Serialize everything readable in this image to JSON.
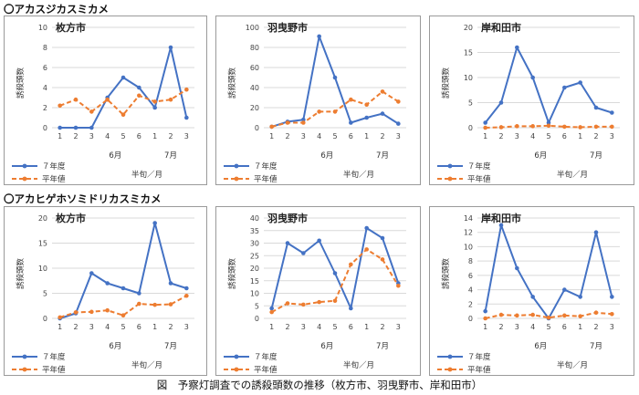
{
  "section1_title": "〇アカスジカスミカメ",
  "section2_title": "〇アカヒゲホソミドリカスミカメ",
  "caption": "図　予察灯調査での誘殺頭数の推移（枚方市、羽曳野市、岸和田市）",
  "colors": {
    "series1": "#4472C4",
    "series2": "#ED7D31",
    "grid": "#d9d9d9"
  },
  "chart_data": [
    {
      "type": "line",
      "title": "枚方市",
      "ylabel": "誘殺頭数",
      "xlabel": "半旬／月",
      "categories": [
        "1",
        "2",
        "3",
        "4",
        "5",
        "6",
        "1",
        "2",
        "3"
      ],
      "months": [
        "6月",
        "7月"
      ],
      "ylim": [
        0,
        10
      ],
      "yticks": [
        "0",
        "2",
        "4",
        "6",
        "8",
        "10"
      ],
      "series": [
        {
          "name": "７年度",
          "values": [
            0,
            0,
            0,
            3,
            5,
            4,
            2,
            8,
            1
          ]
        },
        {
          "name": "平年値",
          "values": [
            2.2,
            2.8,
            1.6,
            2.8,
            1.3,
            3.2,
            2.6,
            2.8,
            3.8
          ]
        }
      ]
    },
    {
      "type": "line",
      "title": "羽曳野市",
      "ylabel": "誘殺頭数",
      "xlabel": "半旬／月",
      "categories": [
        "1",
        "2",
        "3",
        "4",
        "5",
        "6",
        "1",
        "2",
        "3"
      ],
      "months": [
        "6月",
        "7月"
      ],
      "ylim": [
        0,
        100
      ],
      "yticks": [
        "0",
        "20",
        "40",
        "60",
        "80",
        "100"
      ],
      "series": [
        {
          "name": "７年度",
          "values": [
            1,
            6,
            8,
            91,
            50,
            5,
            10,
            14,
            4
          ]
        },
        {
          "name": "平年値",
          "values": [
            1,
            5,
            5,
            16,
            16,
            28,
            23,
            36,
            26
          ]
        }
      ]
    },
    {
      "type": "line",
      "title": "岸和田市",
      "ylabel": "誘殺頭数",
      "xlabel": "半旬／月",
      "categories": [
        "1",
        "2",
        "3",
        "4",
        "5",
        "6",
        "1",
        "2",
        "3"
      ],
      "months": [
        "6月",
        "7月"
      ],
      "ylim": [
        0,
        20
      ],
      "yticks": [
        "0",
        "5",
        "10",
        "15",
        "20"
      ],
      "series": [
        {
          "name": "７年度",
          "values": [
            1,
            5,
            16,
            10,
            1,
            8,
            9,
            4,
            3
          ]
        },
        {
          "name": "平年値",
          "values": [
            0,
            0.1,
            0.3,
            0.3,
            0.4,
            0.2,
            0.1,
            0.2,
            0.2
          ]
        }
      ]
    },
    {
      "type": "line",
      "title": "枚方市",
      "ylabel": "誘殺頭数",
      "xlabel": "半旬／月",
      "categories": [
        "1",
        "2",
        "3",
        "4",
        "5",
        "6",
        "1",
        "2",
        "3"
      ],
      "months": [
        "6月",
        "7月"
      ],
      "ylim": [
        0,
        20
      ],
      "yticks": [
        "0",
        "5",
        "10",
        "15",
        "20"
      ],
      "series": [
        {
          "name": "７年度",
          "values": [
            0,
            1,
            9,
            7,
            6,
            5,
            19,
            7,
            6
          ]
        },
        {
          "name": "平年値",
          "values": [
            0.2,
            1.2,
            1.3,
            1.6,
            0.6,
            2.9,
            2.7,
            2.8,
            4.5
          ]
        }
      ]
    },
    {
      "type": "line",
      "title": "羽曳野市",
      "ylabel": "誘殺頭数",
      "xlabel": "半旬／月",
      "categories": [
        "1",
        "2",
        "3",
        "4",
        "5",
        "6",
        "1",
        "2",
        "3"
      ],
      "months": [
        "6月",
        "7月"
      ],
      "ylim": [
        0,
        40
      ],
      "yticks": [
        "0",
        "5",
        "10",
        "15",
        "20",
        "25",
        "30",
        "35",
        "40"
      ],
      "series": [
        {
          "name": "７年度",
          "values": [
            4,
            30,
            26,
            31,
            18,
            4,
            36,
            32,
            14
          ]
        },
        {
          "name": "平年値",
          "values": [
            2.5,
            6,
            5.5,
            6.5,
            7,
            21.5,
            27.5,
            23.5,
            13
          ]
        }
      ]
    },
    {
      "type": "line",
      "title": "岸和田市",
      "ylabel": "誘殺頭数",
      "xlabel": "半旬／月",
      "categories": [
        "1",
        "2",
        "3",
        "4",
        "5",
        "6",
        "1",
        "2",
        "3"
      ],
      "months": [
        "6月",
        "7月"
      ],
      "ylim": [
        0,
        14
      ],
      "yticks": [
        "0",
        "2",
        "4",
        "6",
        "8",
        "10",
        "12",
        "14"
      ],
      "series": [
        {
          "name": "７年度",
          "values": [
            1,
            13,
            7,
            3,
            0,
            4,
            3,
            12,
            3
          ]
        },
        {
          "name": "平年値",
          "values": [
            0,
            0.5,
            0.4,
            0.5,
            0.1,
            0.4,
            0.3,
            0.8,
            0.6
          ]
        }
      ]
    }
  ]
}
